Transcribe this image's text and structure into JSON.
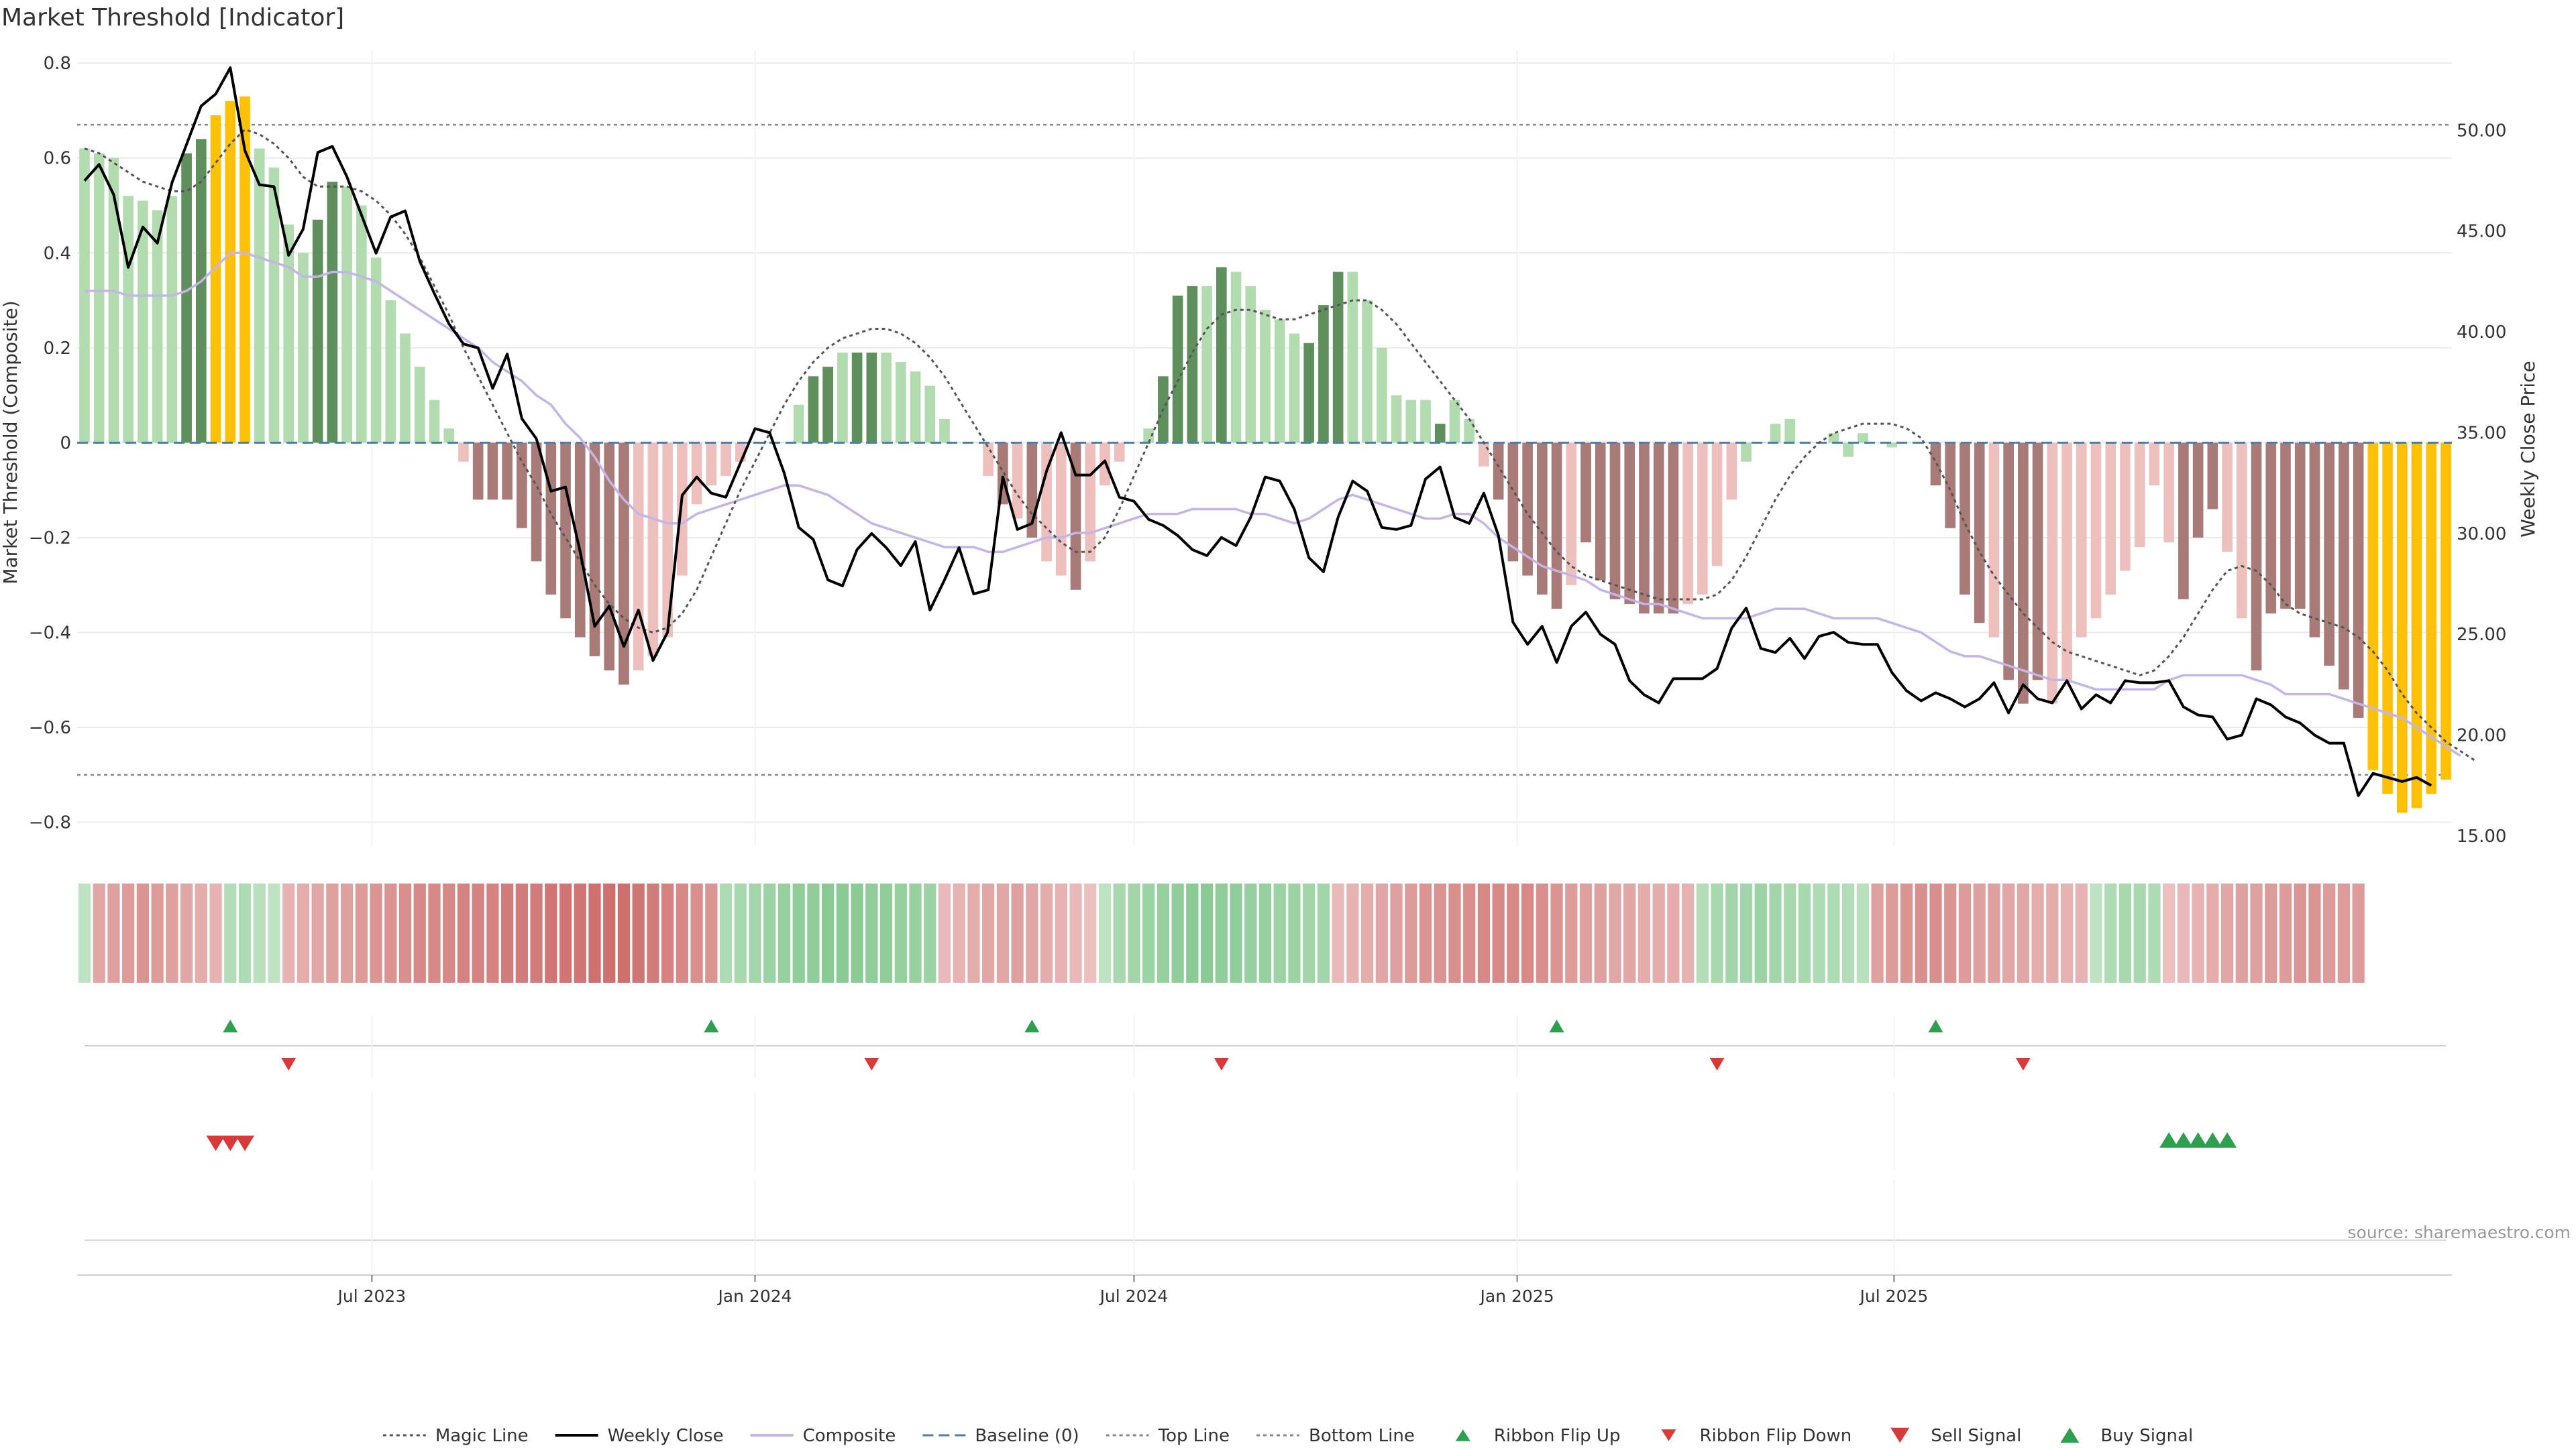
{
  "title": "Market Threshold [Indicator]",
  "source_label": "source: sharemaestro.com",
  "colors": {
    "bar_light_green": "#b2dbb0",
    "bar_dark_green": "#5e8f5c",
    "bar_gold": "#ffc107",
    "bar_dark_red": "#a97b78",
    "bar_light_red": "#eec0bd",
    "weekly_close": "#000000",
    "composite": "#c4b5e6",
    "magic_line": "#555555",
    "baseline": "#4a7fa8",
    "threshold_line": "#888888",
    "flip_up": "#2e9e4f",
    "flip_down": "#d83a3a",
    "sell": "#d83a3a",
    "buy": "#2e9e4f"
  },
  "chart_data": {
    "type": "bar+line",
    "title": "Market Threshold [Indicator]",
    "ylabel": "Market Threshold (Composite)",
    "y2label": "Weekly Close Price",
    "ylim": [
      -0.85,
      0.82
    ],
    "y2lim": [
      14.5,
      53.8
    ],
    "yticks": [
      0.8,
      0.6,
      0.4,
      0.2,
      0,
      -0.2,
      -0.4,
      -0.6,
      -0.8
    ],
    "ytick_labels": [
      "0.8",
      "0.6",
      "0.4",
      "0.2",
      "0",
      "−0.2",
      "−0.4",
      "−0.6",
      "−0.8"
    ],
    "y2ticks": [
      50,
      45,
      40,
      35,
      30,
      25,
      20,
      15
    ],
    "y2tick_labels": [
      "50.00",
      "45.00",
      "40.00",
      "35.00",
      "30.00",
      "25.00",
      "20.00",
      "15.00"
    ],
    "top_line": 0.67,
    "bottom_line": -0.7,
    "x_start": "2023-02-13",
    "x_step_weeks": 1,
    "xticks": [
      {
        "date": "2023-07-01",
        "label": "Jul 2023"
      },
      {
        "date": "2024-01-01",
        "label": "Jan 2024"
      },
      {
        "date": "2024-07-01",
        "label": "Jul 2024"
      },
      {
        "date": "2025-01-01",
        "label": "Jan 2025"
      },
      {
        "date": "2025-07-01",
        "label": "Jul 2025"
      }
    ],
    "composite_bars": [
      0.62,
      0.61,
      0.6,
      0.52,
      0.51,
      0.49,
      0.52,
      0.61,
      0.64,
      0.69,
      0.72,
      0.73,
      0.62,
      0.58,
      0.46,
      0.4,
      0.47,
      0.55,
      0.54,
      0.5,
      0.39,
      0.3,
      0.23,
      0.16,
      0.09,
      0.03,
      -0.04,
      -0.12,
      -0.12,
      -0.12,
      -0.18,
      -0.25,
      -0.32,
      -0.37,
      -0.41,
      -0.45,
      -0.48,
      -0.51,
      -0.48,
      -0.45,
      -0.41,
      -0.28,
      -0.13,
      -0.09,
      -0.07,
      -0.04,
      0.0,
      0.0,
      0.0,
      0.08,
      0.14,
      0.16,
      0.19,
      0.19,
      0.19,
      0.19,
      0.17,
      0.15,
      0.12,
      0.05,
      0.0,
      0.0,
      -0.07,
      -0.13,
      -0.16,
      -0.2,
      -0.25,
      -0.28,
      -0.31,
      -0.25,
      -0.09,
      -0.04,
      0.0,
      0.03,
      0.14,
      0.31,
      0.33,
      0.33,
      0.37,
      0.36,
      0.33,
      0.28,
      0.26,
      0.23,
      0.21,
      0.29,
      0.36,
      0.36,
      0.3,
      0.2,
      0.1,
      0.09,
      0.09,
      0.04,
      0.09,
      0.05,
      -0.05,
      -0.12,
      -0.25,
      -0.28,
      -0.32,
      -0.35,
      -0.3,
      -0.21,
      -0.29,
      -0.33,
      -0.34,
      -0.36,
      -0.36,
      -0.36,
      -0.34,
      -0.32,
      -0.26,
      -0.12,
      -0.04,
      0.0,
      0.04,
      0.05,
      0.0,
      0.0,
      0.02,
      -0.03,
      0.02,
      0.0,
      -0.01,
      0.0,
      0.0,
      -0.09,
      -0.18,
      -0.32,
      -0.38,
      -0.41,
      -0.5,
      -0.55,
      -0.5,
      -0.55,
      -0.5,
      -0.41,
      -0.37,
      -0.32,
      -0.27,
      -0.22,
      -0.09,
      -0.21,
      -0.33,
      -0.2,
      -0.14,
      -0.23,
      -0.37,
      -0.48,
      -0.36,
      -0.35,
      -0.35,
      -0.41,
      -0.47,
      -0.52,
      -0.58,
      -0.69,
      -0.74,
      -0.78,
      -0.77,
      -0.74,
      -0.71
    ],
    "bar_colors": [
      "L",
      "L",
      "L",
      "L",
      "L",
      "L",
      "L",
      "D",
      "D",
      "G",
      "G",
      "G",
      "L",
      "L",
      "L",
      "L",
      "D",
      "D",
      "L",
      "L",
      "L",
      "L",
      "L",
      "L",
      "L",
      "L",
      "r",
      "R",
      "R",
      "R",
      "R",
      "R",
      "R",
      "R",
      "R",
      "R",
      "R",
      "R",
      "r",
      "r",
      "r",
      "r",
      "r",
      "r",
      "r",
      "r",
      "L",
      "L",
      "L",
      "L",
      "D",
      "D",
      "L",
      "D",
      "D",
      "L",
      "L",
      "L",
      "L",
      "L",
      "L",
      "L",
      "r",
      "R",
      "r",
      "R",
      "r",
      "r",
      "R",
      "r",
      "r",
      "r",
      "L",
      "L",
      "D",
      "D",
      "D",
      "L",
      "D",
      "L",
      "L",
      "L",
      "L",
      "L",
      "D",
      "D",
      "D",
      "L",
      "L",
      "L",
      "L",
      "L",
      "L",
      "D",
      "L",
      "L",
      "r",
      "R",
      "R",
      "R",
      "R",
      "R",
      "r",
      "R",
      "R",
      "R",
      "R",
      "R",
      "R",
      "R",
      "r",
      "r",
      "r",
      "r",
      "L",
      "D",
      "L",
      "L",
      "D",
      "L",
      "L",
      "L",
      "L",
      "L",
      "L",
      "L",
      "R",
      "R",
      "R",
      "R",
      "R",
      "r",
      "R",
      "R",
      "R",
      "r",
      "r",
      "r",
      "r",
      "r",
      "r",
      "r",
      "r",
      "r",
      "R",
      "R",
      "R",
      "r",
      "r",
      "R",
      "R",
      "R",
      "R",
      "R",
      "R",
      "R",
      "R",
      "G",
      "G",
      "G",
      "G",
      "G",
      "G"
    ],
    "weekly_close": [
      47.5,
      48.3,
      46.8,
      43.2,
      45.2,
      44.4,
      47.4,
      49.3,
      51.2,
      51.8,
      53.1,
      49.0,
      47.3,
      47.2,
      43.8,
      45.1,
      48.9,
      49.2,
      47.7,
      45.8,
      43.9,
      45.7,
      46.0,
      43.5,
      41.9,
      40.4,
      39.4,
      39.2,
      37.2,
      38.9,
      35.7,
      34.7,
      32.1,
      32.3,
      29.1,
      25.4,
      26.4,
      24.4,
      26.2,
      23.7,
      25.1,
      31.9,
      32.8,
      32.0,
      31.8,
      33.5,
      35.2,
      35.0,
      33.0,
      30.3,
      29.7,
      27.7,
      27.4,
      29.2,
      30.0,
      29.3,
      28.4,
      29.6,
      26.2,
      27.7,
      29.3,
      27.0,
      27.2,
      32.8,
      30.2,
      30.5,
      33.1,
      35.0,
      32.9,
      32.9,
      33.6,
      31.8,
      31.6,
      30.7,
      30.4,
      29.9,
      29.2,
      28.9,
      29.8,
      29.4,
      30.8,
      32.8,
      32.6,
      31.2,
      28.8,
      28.1,
      30.8,
      32.6,
      32.1,
      30.3,
      30.2,
      30.4,
      32.7,
      33.3,
      30.8,
      30.5,
      32.0,
      29.9,
      25.6,
      24.5,
      25.4,
      23.6,
      25.4,
      26.1,
      25.0,
      24.5,
      22.7,
      22.0,
      21.6,
      22.8,
      22.8,
      22.8,
      23.3,
      25.3,
      26.3,
      24.3,
      24.1,
      24.8,
      23.8,
      24.9,
      25.1,
      24.6,
      24.5,
      24.5,
      23.1,
      22.2,
      21.7,
      22.1,
      21.8,
      21.4,
      21.8,
      22.6,
      21.1,
      22.5,
      21.8,
      21.6,
      22.7,
      21.3,
      22.0,
      21.6,
      22.7,
      22.6,
      22.6,
      22.7,
      21.4,
      21.0,
      20.9,
      19.8,
      20.0,
      21.8,
      21.5,
      20.9,
      20.6,
      20.0,
      19.6,
      19.6,
      17.0,
      18.1,
      17.9,
      17.7,
      17.9,
      17.5
    ],
    "composite_line": [
      0.32,
      0.32,
      0.32,
      0.31,
      0.31,
      0.31,
      0.31,
      0.32,
      0.34,
      0.37,
      0.4,
      0.4,
      0.39,
      0.38,
      0.37,
      0.35,
      0.35,
      0.36,
      0.36,
      0.35,
      0.34,
      0.32,
      0.3,
      0.28,
      0.26,
      0.24,
      0.22,
      0.2,
      0.17,
      0.15,
      0.13,
      0.1,
      0.08,
      0.04,
      0.01,
      -0.03,
      -0.08,
      -0.12,
      -0.15,
      -0.16,
      -0.17,
      -0.17,
      -0.15,
      -0.14,
      -0.13,
      -0.12,
      -0.11,
      -0.1,
      -0.09,
      -0.09,
      -0.1,
      -0.11,
      -0.13,
      -0.15,
      -0.17,
      -0.18,
      -0.19,
      -0.2,
      -0.21,
      -0.22,
      -0.22,
      -0.22,
      -0.23,
      -0.23,
      -0.22,
      -0.21,
      -0.2,
      -0.2,
      -0.19,
      -0.19,
      -0.18,
      -0.17,
      -0.16,
      -0.15,
      -0.15,
      -0.15,
      -0.14,
      -0.14,
      -0.14,
      -0.14,
      -0.15,
      -0.15,
      -0.16,
      -0.17,
      -0.16,
      -0.14,
      -0.12,
      -0.11,
      -0.12,
      -0.13,
      -0.14,
      -0.15,
      -0.16,
      -0.16,
      -0.15,
      -0.15,
      -0.17,
      -0.2,
      -0.22,
      -0.24,
      -0.26,
      -0.27,
      -0.28,
      -0.29,
      -0.31,
      -0.32,
      -0.33,
      -0.34,
      -0.34,
      -0.35,
      -0.36,
      -0.37,
      -0.37,
      -0.37,
      -0.37,
      -0.36,
      -0.35,
      -0.35,
      -0.35,
      -0.36,
      -0.37,
      -0.37,
      -0.37,
      -0.37,
      -0.38,
      -0.39,
      -0.4,
      -0.42,
      -0.44,
      -0.45,
      -0.45,
      -0.46,
      -0.47,
      -0.48,
      -0.49,
      -0.5,
      -0.5,
      -0.51,
      -0.52,
      -0.52,
      -0.52,
      -0.52,
      -0.52,
      -0.5,
      -0.49,
      -0.49,
      -0.49,
      -0.49,
      -0.49,
      -0.5,
      -0.51,
      -0.53,
      -0.53,
      -0.53,
      -0.53,
      -0.54,
      -0.55,
      -0.56,
      -0.57,
      -0.58,
      -0.6,
      -0.62,
      -0.64,
      -0.66
    ],
    "magic_line": [
      0.62,
      0.61,
      0.59,
      0.57,
      0.55,
      0.54,
      0.53,
      0.53,
      0.55,
      0.59,
      0.63,
      0.66,
      0.65,
      0.63,
      0.6,
      0.56,
      0.54,
      0.54,
      0.54,
      0.53,
      0.51,
      0.48,
      0.44,
      0.39,
      0.33,
      0.27,
      0.2,
      0.14,
      0.08,
      0.02,
      -0.04,
      -0.09,
      -0.15,
      -0.2,
      -0.25,
      -0.3,
      -0.34,
      -0.37,
      -0.39,
      -0.4,
      -0.39,
      -0.36,
      -0.31,
      -0.24,
      -0.17,
      -0.1,
      -0.04,
      0.02,
      0.08,
      0.13,
      0.17,
      0.2,
      0.22,
      0.23,
      0.24,
      0.24,
      0.23,
      0.21,
      0.18,
      0.14,
      0.09,
      0.04,
      -0.01,
      -0.06,
      -0.11,
      -0.15,
      -0.18,
      -0.21,
      -0.23,
      -0.23,
      -0.2,
      -0.14,
      -0.07,
      0.0,
      0.07,
      0.13,
      0.19,
      0.24,
      0.27,
      0.28,
      0.28,
      0.27,
      0.26,
      0.26,
      0.27,
      0.28,
      0.29,
      0.3,
      0.3,
      0.28,
      0.25,
      0.21,
      0.17,
      0.13,
      0.09,
      0.05,
      0.0,
      -0.05,
      -0.1,
      -0.15,
      -0.19,
      -0.23,
      -0.26,
      -0.28,
      -0.29,
      -0.3,
      -0.31,
      -0.32,
      -0.33,
      -0.33,
      -0.33,
      -0.33,
      -0.32,
      -0.29,
      -0.24,
      -0.18,
      -0.12,
      -0.07,
      -0.03,
      0.0,
      0.02,
      0.03,
      0.04,
      0.04,
      0.04,
      0.03,
      0.01,
      -0.04,
      -0.1,
      -0.17,
      -0.23,
      -0.28,
      -0.32,
      -0.36,
      -0.39,
      -0.42,
      -0.44,
      -0.45,
      -0.46,
      -0.47,
      -0.48,
      -0.49,
      -0.48,
      -0.45,
      -0.41,
      -0.36,
      -0.31,
      -0.27,
      -0.26,
      -0.27,
      -0.3,
      -0.34,
      -0.36,
      -0.37,
      -0.38,
      -0.39,
      -0.41,
      -0.44,
      -0.48,
      -0.53,
      -0.57,
      -0.6,
      -0.63,
      -0.65,
      -0.67
    ],
    "ribbon_values": [
      0.3,
      -0.45,
      -0.5,
      -0.55,
      -0.6,
      -0.55,
      -0.5,
      -0.45,
      -0.4,
      -0.35,
      0.4,
      0.45,
      0.35,
      0.3,
      -0.35,
      -0.4,
      -0.45,
      -0.5,
      -0.5,
      -0.55,
      -0.6,
      -0.6,
      -0.65,
      -0.7,
      -0.7,
      -0.7,
      -0.75,
      -0.75,
      -0.75,
      -0.8,
      -0.8,
      -0.8,
      -0.85,
      -0.85,
      -0.85,
      -0.9,
      -0.9,
      -0.9,
      -0.85,
      -0.8,
      -0.75,
      -0.7,
      -0.65,
      -0.6,
      0.45,
      0.5,
      0.55,
      0.6,
      0.65,
      0.7,
      0.7,
      0.75,
      0.75,
      0.75,
      0.7,
      0.7,
      0.65,
      0.65,
      0.6,
      -0.3,
      -0.35,
      -0.4,
      -0.45,
      -0.45,
      -0.5,
      -0.45,
      -0.4,
      -0.35,
      -0.3,
      -0.25,
      0.3,
      0.5,
      0.55,
      0.6,
      0.65,
      0.7,
      0.75,
      0.75,
      0.7,
      0.7,
      0.65,
      0.65,
      0.6,
      0.6,
      0.55,
      0.55,
      -0.3,
      -0.35,
      -0.4,
      -0.45,
      -0.5,
      -0.55,
      -0.6,
      -0.6,
      -0.65,
      -0.65,
      -0.7,
      -0.7,
      -0.7,
      -0.7,
      -0.65,
      -0.6,
      -0.55,
      -0.5,
      -0.5,
      -0.45,
      -0.45,
      -0.4,
      -0.4,
      -0.4,
      -0.35,
      0.4,
      0.5,
      0.55,
      0.55,
      0.6,
      0.55,
      0.5,
      0.5,
      0.45,
      0.45,
      0.4,
      0.35,
      -0.5,
      -0.55,
      -0.6,
      -0.65,
      -0.65,
      -0.6,
      -0.55,
      -0.5,
      -0.5,
      -0.45,
      -0.45,
      -0.4,
      -0.4,
      -0.35,
      -0.35,
      0.3,
      0.45,
      0.5,
      0.5,
      0.45,
      -0.25,
      -0.3,
      -0.35,
      -0.4,
      -0.45,
      -0.5,
      -0.5,
      -0.55,
      -0.55,
      -0.6,
      -0.6,
      -0.55,
      -0.55,
      -0.55
    ],
    "ribbon_flip_up": [
      10,
      43,
      65,
      101,
      127
    ],
    "ribbon_flip_down": [
      14,
      54,
      78,
      112,
      133
    ],
    "sell_signals": [
      9,
      10,
      11
    ],
    "buy_signals": [
      143,
      144,
      145,
      146,
      147
    ]
  },
  "legend": [
    {
      "label": "Magic Line",
      "kind": "dotted",
      "color": "#555555"
    },
    {
      "label": "Weekly Close",
      "kind": "solid",
      "color": "#000000"
    },
    {
      "label": "Composite",
      "kind": "solid",
      "color": "#c4b5e6"
    },
    {
      "label": "Baseline (0)",
      "kind": "dashed",
      "color": "#4a7fa8"
    },
    {
      "label": "Top Line",
      "kind": "dotted",
      "color": "#888888"
    },
    {
      "label": "Bottom Line",
      "kind": "dotted",
      "color": "#888888"
    },
    {
      "label": "Ribbon Flip Up",
      "kind": "tri-up-small",
      "color": "#2e9e4f"
    },
    {
      "label": "Ribbon Flip Down",
      "kind": "tri-down-small",
      "color": "#d83a3a"
    },
    {
      "label": "Sell Signal",
      "kind": "tri-down",
      "color": "#d83a3a"
    },
    {
      "label": "Buy Signal",
      "kind": "tri-up",
      "color": "#2e9e4f"
    }
  ]
}
